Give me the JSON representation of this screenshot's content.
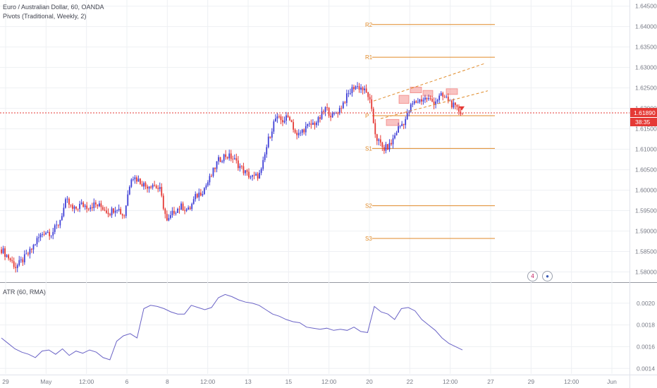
{
  "header": {
    "title": "Euro / Australian Dollar, 60, OANDA",
    "indicator": "Pivots (Traditional, Weekly, 2)"
  },
  "atr_panel": {
    "label": "ATR (60, RMA)"
  },
  "price_tag": {
    "value": "1.61890",
    "countdown": "38:35"
  },
  "colors": {
    "up_candle": "#3f3fd6",
    "down_candle": "#e53935",
    "pivot": "#e08a28",
    "price_line": "#e53935",
    "atr_line": "#6a63c6",
    "grid": "#eef0f3",
    "axis_text": "#787b86"
  },
  "events": [
    {
      "icon": "earnings-icon",
      "text": "4"
    },
    {
      "icon": "globe-icon",
      "text": ""
    }
  ],
  "chart_data": [
    {
      "type": "candlestick",
      "title": "Euro / Australian Dollar, 60, OANDA",
      "x_ticks": [
        "29",
        "May",
        "12:00",
        "6",
        "8",
        "12:00",
        "13",
        "15",
        "12:00",
        "20",
        "22",
        "12:00",
        "27",
        "29",
        "12:00",
        "Jun"
      ],
      "y_ticks": [
        "1.64500",
        "1.64000",
        "1.63500",
        "1.63000",
        "1.62500",
        "1.62000",
        "1.61500",
        "1.61000",
        "1.60500",
        "1.60000",
        "1.59500",
        "1.59000",
        "1.58500",
        "1.58000"
      ],
      "ylim": [
        1.5775,
        1.6465
      ],
      "close_series": [
        1.5855,
        1.5835,
        1.5812,
        1.583,
        1.585,
        1.588,
        1.59,
        1.5895,
        1.592,
        1.5975,
        1.595,
        1.5965,
        1.596,
        1.5965,
        1.5958,
        1.5945,
        1.596,
        1.5935,
        1.6035,
        1.6025,
        1.601,
        1.6015,
        1.6,
        1.592,
        1.595,
        1.596,
        1.595,
        1.5985,
        1.6,
        1.603,
        1.607,
        1.6085,
        1.608,
        1.606,
        1.604,
        1.603,
        1.604,
        1.612,
        1.6175,
        1.617,
        1.618,
        1.613,
        1.615,
        1.616,
        1.617,
        1.62,
        1.618,
        1.62,
        1.623,
        1.6255,
        1.625,
        1.623,
        1.613,
        1.61,
        1.611,
        1.615,
        1.617,
        1.621,
        1.622,
        1.6225,
        1.6215,
        1.623,
        1.6222,
        1.62,
        1.6189
      ],
      "pivots": [
        {
          "label": "R2",
          "value": 1.6405
        },
        {
          "label": "R1",
          "value": 1.6325
        },
        {
          "label": "P",
          "value": 1.6182
        },
        {
          "label": "S1",
          "value": 1.6102
        },
        {
          "label": "S2",
          "value": 1.5962
        },
        {
          "label": "S3",
          "value": 1.5882
        }
      ],
      "current_price": 1.6189
    },
    {
      "type": "line",
      "title": "ATR (60, RMA)",
      "y_ticks": [
        "0.0020",
        "0.0018",
        "0.0016",
        "0.0014"
      ],
      "ylim": [
        0.00135,
        0.00218
      ],
      "values": [
        0.00168,
        0.00163,
        0.00158,
        0.00155,
        0.00153,
        0.0015,
        0.00156,
        0.00157,
        0.00153,
        0.00158,
        0.00152,
        0.00156,
        0.00154,
        0.00157,
        0.00155,
        0.0015,
        0.00148,
        0.00165,
        0.0017,
        0.00172,
        0.00168,
        0.00195,
        0.00198,
        0.00197,
        0.00195,
        0.00192,
        0.0019,
        0.0019,
        0.00198,
        0.00196,
        0.00194,
        0.00196,
        0.00205,
        0.00208,
        0.00206,
        0.00203,
        0.00201,
        0.002,
        0.00198,
        0.00194,
        0.0019,
        0.00188,
        0.00185,
        0.00183,
        0.00182,
        0.00178,
        0.00177,
        0.00176,
        0.00177,
        0.00175,
        0.00176,
        0.00175,
        0.00178,
        0.00174,
        0.00173,
        0.00197,
        0.00192,
        0.0019,
        0.00185,
        0.00195,
        0.00196,
        0.00193,
        0.00185,
        0.0018,
        0.00175,
        0.00168,
        0.00163,
        0.0016,
        0.00157
      ]
    }
  ]
}
